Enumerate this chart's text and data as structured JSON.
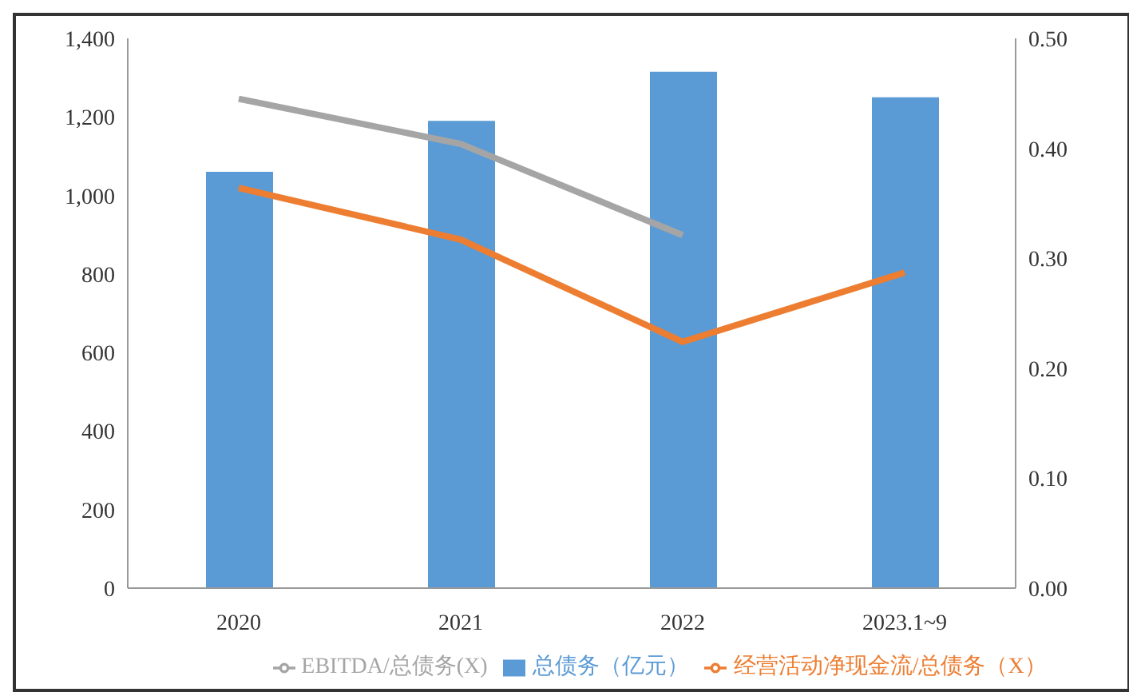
{
  "chart_data": {
    "type": "bar",
    "categories": [
      "2020",
      "2021",
      "2022",
      "2023.1~9"
    ],
    "series": [
      {
        "name": "总债务（亿元）",
        "color": "#5b9bd5",
        "values": [
          1060,
          1190,
          1315,
          1250
        ]
      },
      {
        "name": "经营活动净现金流/总债务（X）",
        "type": "line",
        "axis": "y2",
        "color": "#ed7d31",
        "values": [
          0.364,
          0.317,
          0.224,
          0.287
        ]
      },
      {
        "name": "EBITDA/总债务(X)",
        "type": "line",
        "axis": "y2",
        "color": "#a5a5a5",
        "values": [
          0.445,
          0.404,
          0.321,
          null
        ]
      }
    ],
    "ylim": [
      0,
      1400
    ],
    "yticks": [
      0,
      200,
      400,
      600,
      800,
      {
        "value": 1000,
        "label": "1,000"
      },
      {
        "value": 1200,
        "label": "1,200"
      },
      {
        "value": 1400,
        "label": "1,400"
      }
    ],
    "y2lim": [
      0,
      0.5
    ],
    "y2ticks": [
      {
        "value": 0,
        "label": "0.00"
      },
      {
        "value": 0.1,
        "label": "0.10"
      },
      {
        "value": 0.2,
        "label": "0.20"
      },
      {
        "value": 0.3,
        "label": "0.30"
      },
      {
        "value": 0.4,
        "label": "0.40"
      },
      {
        "value": 0.5,
        "label": "0.50"
      }
    ],
    "grid": false,
    "legend": "bottom",
    "marker": "none",
    "line_style": "solid"
  }
}
